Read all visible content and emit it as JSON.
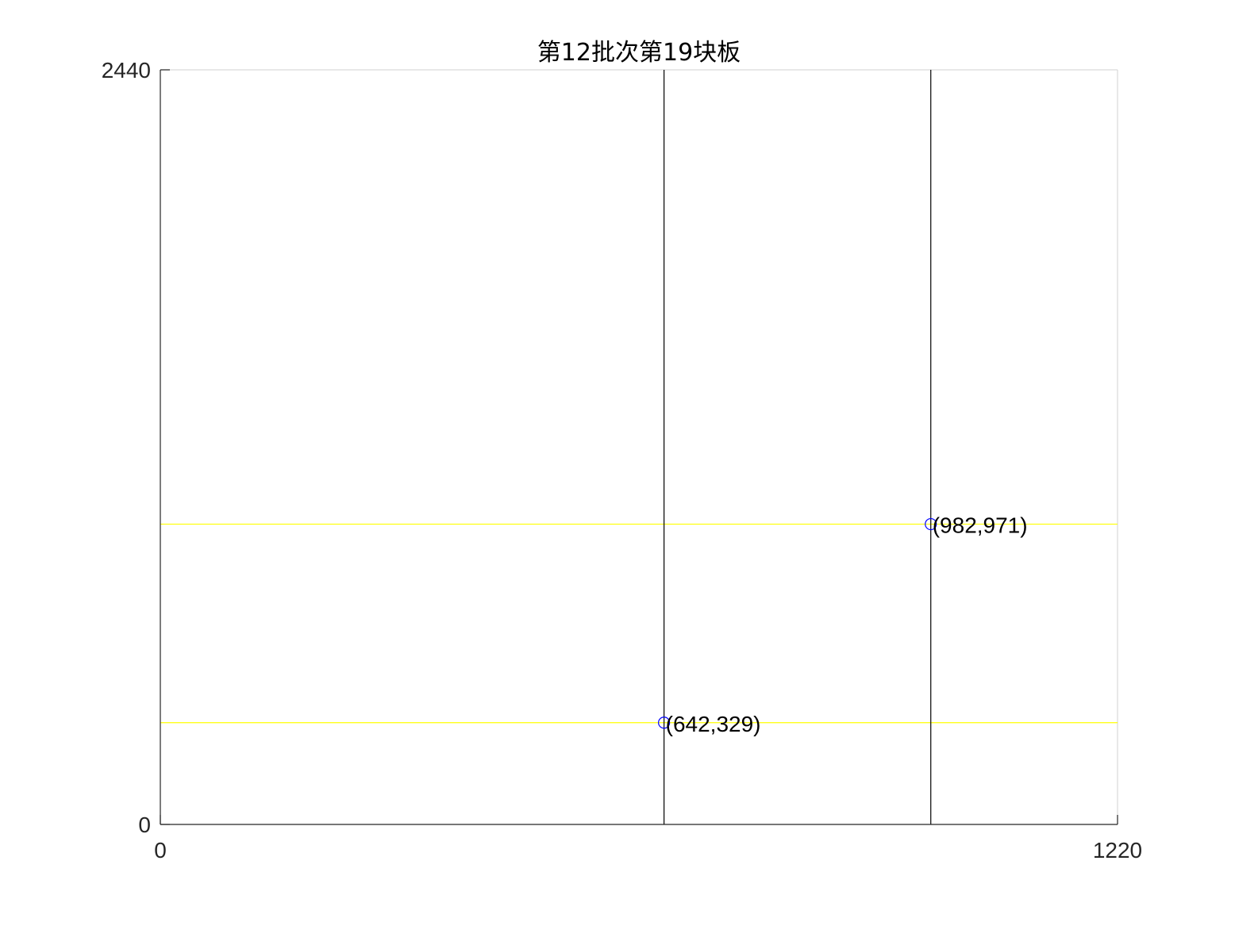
{
  "chart_data": {
    "type": "line",
    "title": "第12批次第19块板",
    "xlabel": "",
    "ylabel": "",
    "xlim": [
      0,
      1220
    ],
    "ylim": [
      0,
      2440
    ],
    "xticks": [
      "0",
      "1220"
    ],
    "yticks": [
      "0",
      "2440"
    ],
    "grid": false,
    "vertical_cuts": {
      "color": "#000000",
      "x": [
        642,
        982
      ]
    },
    "horizontal_cuts": {
      "color": "#ffff00",
      "y": [
        329,
        971
      ]
    },
    "points": {
      "color": "#0000ff",
      "marker": "circle",
      "items": [
        {
          "x": 642,
          "y": 329,
          "label": "(642,329)"
        },
        {
          "x": 982,
          "y": 971,
          "label": "(982,971)"
        }
      ]
    },
    "box_color": "#d9d9d9",
    "axis_color": "#262626"
  }
}
